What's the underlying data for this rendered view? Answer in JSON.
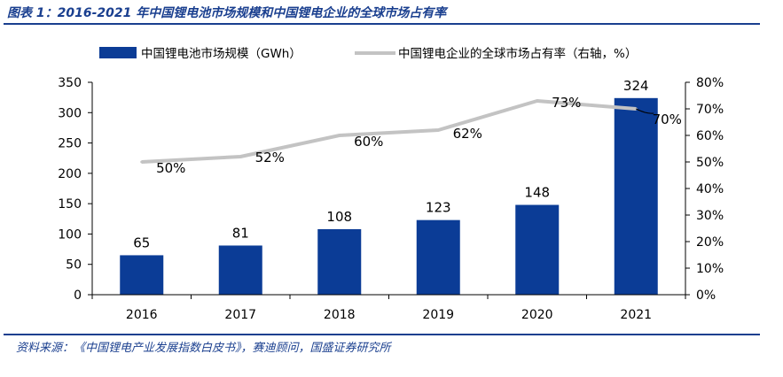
{
  "figure": {
    "title": "图表 1：2016-2021 年中国锂电池市场规模和中国锂电企业的全球市场占有率",
    "source": "资料来源：《中国锂电产业发展指数白皮书》，赛迪顾问，国盛证券研究所"
  },
  "chart_data": {
    "type": "bar",
    "categories": [
      "2016",
      "2017",
      "2018",
      "2019",
      "2020",
      "2021"
    ],
    "series": [
      {
        "name": "中国锂电池市场规模（GWh）",
        "kind": "bar",
        "axis": "left",
        "color": "#0b3c96",
        "values": [
          65,
          81,
          108,
          123,
          148,
          324
        ],
        "labels": [
          "65",
          "81",
          "108",
          "123",
          "148",
          "324"
        ]
      },
      {
        "name": "中国锂电企业的全球市场占有率（右轴，%）",
        "kind": "line",
        "axis": "right",
        "color": "#c3c3c3",
        "values": [
          50,
          52,
          60,
          62,
          73,
          70
        ],
        "labels": [
          "50%",
          "52%",
          "60%",
          "62%",
          "73%",
          "70%"
        ]
      }
    ],
    "y_left": {
      "min": 0,
      "max": 350,
      "ticks": [
        "0",
        "50",
        "100",
        "150",
        "200",
        "250",
        "300",
        "350"
      ]
    },
    "y_right": {
      "min": 0,
      "max": 80,
      "ticks": [
        "0%",
        "10%",
        "20%",
        "30%",
        "40%",
        "50%",
        "60%",
        "70%",
        "80%"
      ]
    },
    "legend_position": "top",
    "grid": false
  }
}
